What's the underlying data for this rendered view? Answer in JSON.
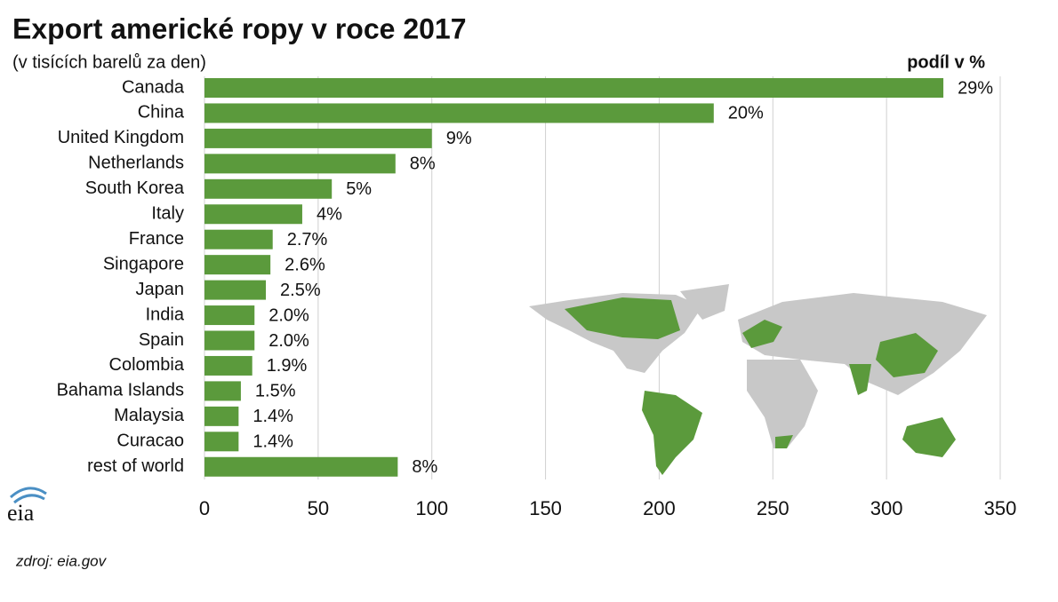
{
  "chart_data": {
    "type": "bar",
    "orientation": "horizontal",
    "title": "Export americké ropy v roce 2017",
    "subtitle": "(v tisících barelů za den)",
    "label_header": "podíl v %",
    "source": "zdroj: eia.gov",
    "logo": "eia",
    "categories": [
      "Canada",
      "China",
      "United Kingdom",
      "Netherlands",
      "South Korea",
      "Italy",
      "France",
      "Singapore",
      "Japan",
      "India",
      "Spain",
      "Colombia",
      "Bahama Islands",
      "Malaysia",
      "Curacao",
      "rest of world"
    ],
    "values": [
      325,
      224,
      100,
      84,
      56,
      43,
      30,
      29,
      27,
      22,
      22,
      21,
      16,
      15,
      15,
      85
    ],
    "share_labels": [
      "29%",
      "20%",
      "9%",
      "8%",
      "5%",
      "4%",
      "2.7%",
      "2.6%",
      "2.5%",
      "2.0%",
      "2.0%",
      "1.9%",
      "1.5%",
      "1.4%",
      "1.4%",
      "8%"
    ],
    "color": "#5b9a3c",
    "xlim": [
      0,
      350
    ],
    "xticks": [
      0,
      50,
      100,
      150,
      200,
      250,
      300,
      350
    ],
    "grid": true
  }
}
